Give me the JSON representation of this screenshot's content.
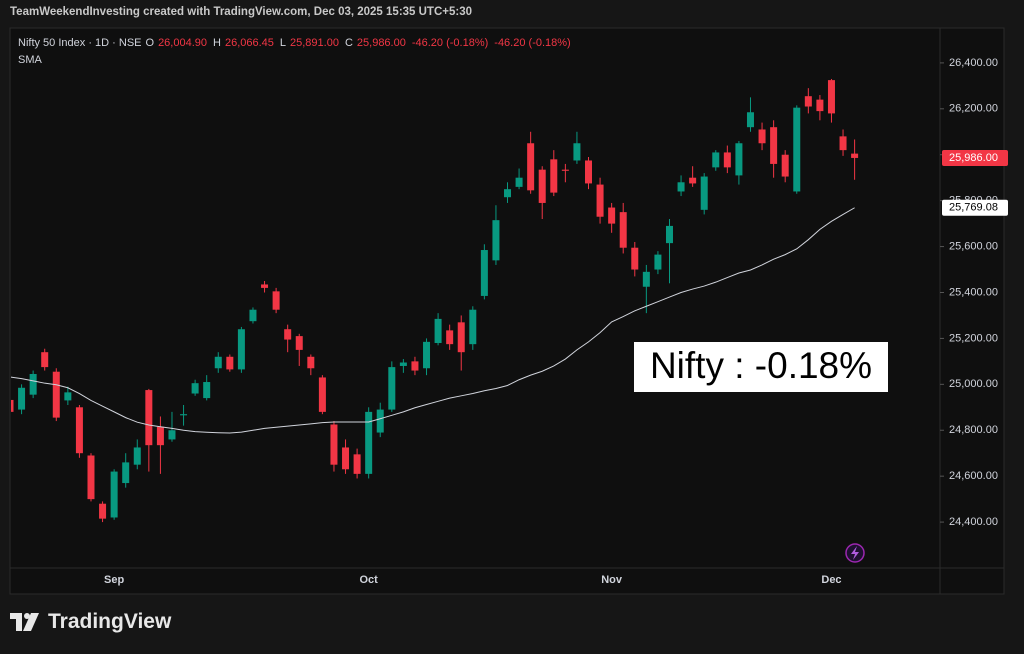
{
  "watermark": "TeamWeekendInvesting created with TradingView.com, Dec 03, 2025 15:35 UTC+5:30",
  "chart_data": {
    "type": "candlestick",
    "legend": {
      "symbol": "Nifty 50 Index · 1D · NSE",
      "fields": [
        {
          "key": "O",
          "label": "26,004.90"
        },
        {
          "key": "H",
          "label": "26,066.45"
        },
        {
          "key": "L",
          "label": "25,891.00"
        },
        {
          "key": "C",
          "label": "25,986.00"
        }
      ],
      "changes": [
        "-46.20 (-0.18%)",
        "-46.20 (-0.18%)"
      ]
    },
    "categories": [
      null,
      null,
      null,
      null,
      null,
      null,
      null,
      null,
      null,
      "Sep",
      null,
      null,
      null,
      null,
      null,
      null,
      null,
      null,
      null,
      null,
      null,
      null,
      null,
      null,
      null,
      null,
      null,
      null,
      null,
      null,
      null,
      "Oct",
      null,
      null,
      null,
      null,
      null,
      null,
      null,
      null,
      null,
      null,
      null,
      null,
      null,
      null,
      null,
      null,
      null,
      null,
      null,
      null,
      "Nov",
      null,
      null,
      null,
      null,
      null,
      null,
      null,
      null,
      null,
      null,
      null,
      null,
      null,
      null,
      null,
      null,
      null,
      null,
      "Dec",
      null,
      null
    ],
    "open": [
      24932,
      24890,
      24955,
      25140,
      25055,
      24930,
      24900,
      24690,
      24480,
      24420,
      24570,
      24650,
      24975,
      24815,
      24760,
      24865,
      24960,
      24940,
      25070,
      25120,
      25065,
      25275,
      25435,
      25405,
      25240,
      25210,
      25120,
      25030,
      24825,
      24725,
      24695,
      24610,
      24790,
      24890,
      25080,
      25100,
      25070,
      25180,
      25235,
      25270,
      25175,
      25385,
      25540,
      25815,
      25860,
      26050,
      25935,
      25980,
      25935,
      25975,
      25975,
      25870,
      25770,
      25750,
      25595,
      25425,
      25500,
      25615,
      25840,
      25900,
      25760,
      25945,
      26010,
      25910,
      26120,
      26110,
      26120,
      26000,
      25840,
      26255,
      26240,
      26325,
      26080,
      26004.9
    ],
    "high": [
      24950,
      25000,
      25060,
      25155,
      25070,
      24990,
      24910,
      24700,
      24490,
      24630,
      24700,
      24760,
      24980,
      24860,
      24880,
      24910,
      25020,
      25040,
      25140,
      25130,
      25250,
      25335,
      25450,
      25420,
      25260,
      25220,
      25130,
      25040,
      24840,
      24760,
      24720,
      24900,
      24920,
      25100,
      25110,
      25120,
      25200,
      25310,
      25260,
      25300,
      25340,
      25610,
      25780,
      25880,
      25940,
      26100,
      25950,
      26020,
      25960,
      26100,
      25990,
      25900,
      25790,
      25790,
      25620,
      25520,
      25580,
      25720,
      25910,
      25950,
      25920,
      26020,
      26040,
      26060,
      26250,
      26140,
      26150,
      26020,
      26215,
      26290,
      26260,
      26330,
      26110,
      26066.45
    ],
    "low": [
      24860,
      24870,
      24940,
      25060,
      24840,
      24910,
      24680,
      24490,
      24400,
      24410,
      24550,
      24630,
      24620,
      24610,
      24750,
      24820,
      24950,
      24930,
      25050,
      25055,
      25050,
      25265,
      25400,
      25310,
      25140,
      25080,
      25040,
      24870,
      24620,
      24610,
      24590,
      24590,
      24770,
      24880,
      25050,
      25040,
      25040,
      25170,
      25150,
      25060,
      25150,
      25370,
      25520,
      25790,
      25850,
      25830,
      25720,
      25820,
      25880,
      25960,
      25850,
      25700,
      25660,
      25570,
      25470,
      25310,
      25480,
      25440,
      25820,
      25860,
      25740,
      25930,
      25920,
      25870,
      26100,
      26020,
      25900,
      25880,
      25830,
      26180,
      26150,
      26140,
      25995,
      25891
    ],
    "close": [
      24880,
      24985,
      25045,
      25075,
      24855,
      24965,
      24700,
      24500,
      24415,
      24620,
      24660,
      24725,
      24735,
      24735,
      24800,
      24870,
      25005,
      25010,
      25120,
      25065,
      25240,
      25325,
      25420,
      25325,
      25195,
      25150,
      25070,
      24880,
      24650,
      24630,
      24610,
      24880,
      24890,
      25075,
      25095,
      25060,
      25185,
      25285,
      25175,
      25140,
      25325,
      25585,
      25715,
      25850,
      25900,
      25845,
      25790,
      25835,
      25930,
      26050,
      25875,
      25730,
      25700,
      25595,
      25500,
      25490,
      25565,
      25690,
      25880,
      25875,
      25905,
      26010,
      25945,
      26050,
      26185,
      26050,
      25960,
      25905,
      26205,
      26210,
      26190,
      26180,
      26020,
      25986
    ],
    "up_color": "#089981",
    "down_color": "#f23645",
    "series": [
      {
        "name": "SMA",
        "color": "#d1d4dc",
        "values": [
          25032,
          25025,
          25015,
          25005,
          24998,
          24985,
          24960,
          24930,
          24905,
          24880,
          24855,
          24835,
          24823,
          24815,
          24808,
          24800,
          24794,
          24791,
          24789,
          24788,
          24792,
          24800,
          24808,
          24813,
          24818,
          24823,
          24828,
          24833,
          24836,
          24836,
          24836,
          24836,
          24850,
          24865,
          24880,
          24898,
          24912,
          24926,
          24940,
          24950,
          24960,
          24972,
          24982,
          24995,
          25020,
          25040,
          25057,
          25080,
          25110,
          25150,
          25185,
          25225,
          25272,
          25295,
          25320,
          25340,
          25360,
          25380,
          25400,
          25415,
          25428,
          25445,
          25465,
          25485,
          25498,
          25520,
          25545,
          25565,
          25590,
          25630,
          25675,
          25710,
          25740,
          25769.08
        ]
      }
    ],
    "ylim": [
      24200,
      26552
    ],
    "yticks": [
      {
        "value": 24400,
        "label": "24,400.00"
      },
      {
        "value": 24600,
        "label": "24,600.00"
      },
      {
        "value": 24800,
        "label": "24,800.00"
      },
      {
        "value": 25000,
        "label": "25,000.00"
      },
      {
        "value": 25200,
        "label": "25,200.00"
      },
      {
        "value": 25400,
        "label": "25,400.00"
      },
      {
        "value": 25600,
        "label": "25,600.00"
      },
      {
        "value": 25800,
        "label": "25,800.00"
      },
      {
        "value": 26000,
        "label": "26,000.00"
      },
      {
        "value": 26200,
        "label": "26,200.00"
      },
      {
        "value": 26400,
        "label": "26,400.00"
      }
    ],
    "grid": false,
    "last_price_tag": {
      "value": 25986,
      "label": "25,986.00"
    },
    "sma_tag": {
      "value": 25769.08,
      "label": "25,769.08"
    },
    "annotation": "Nifty : -0.18%"
  },
  "footer": {
    "brand": "TradingView"
  }
}
